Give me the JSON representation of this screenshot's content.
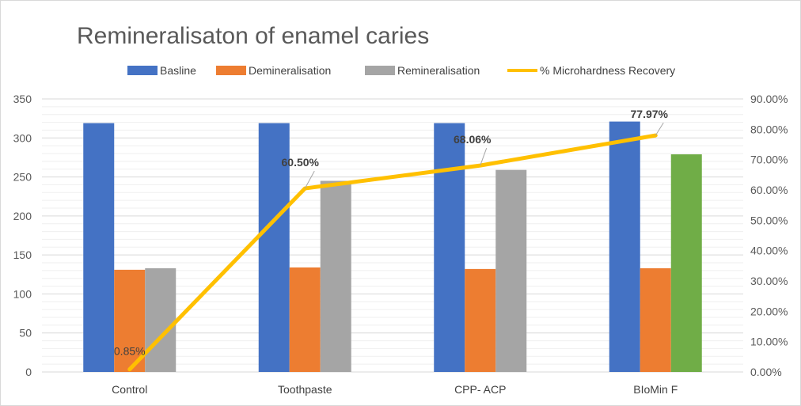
{
  "chart_data": {
    "type": "bar",
    "title": "Remineralisaton of enamel caries",
    "categories": [
      "Control",
      "Toothpaste",
      "CPP- ACP",
      "BIoMin F"
    ],
    "series": [
      {
        "name": "Basline",
        "type": "bar",
        "axis": "left",
        "color": "#4472C4",
        "values": [
          319,
          319,
          319,
          321
        ]
      },
      {
        "name": "Demineralisation",
        "type": "bar",
        "axis": "left",
        "color": "#ED7D31",
        "values": [
          131,
          134,
          132,
          133
        ]
      },
      {
        "name": "Remineralisation",
        "type": "bar",
        "axis": "left",
        "color": "#A5A5A5",
        "point_colors": [
          "#A5A5A5",
          "#A5A5A5",
          "#A5A5A5",
          "#70AD47"
        ],
        "values": [
          133,
          245,
          259,
          279
        ]
      },
      {
        "name": "% Microhardness Recovery",
        "type": "line",
        "axis": "right",
        "color": "#FFC000",
        "values": [
          0.85,
          60.5,
          68.06,
          77.97
        ],
        "labels": [
          "0.85%",
          "60.50%",
          "68.06%",
          "77.97%"
        ]
      }
    ],
    "y_left": {
      "min": 0,
      "max": 350,
      "ticks": [
        "0",
        "50",
        "100",
        "150",
        "200",
        "250",
        "300",
        "350"
      ]
    },
    "y_right": {
      "min": 0,
      "max": 90,
      "ticks": [
        "0.00%",
        "10.00%",
        "20.00%",
        "30.00%",
        "40.00%",
        "50.00%",
        "60.00%",
        "70.00%",
        "80.00%",
        "90.00%"
      ]
    },
    "grid": true,
    "legend_position": "top"
  }
}
